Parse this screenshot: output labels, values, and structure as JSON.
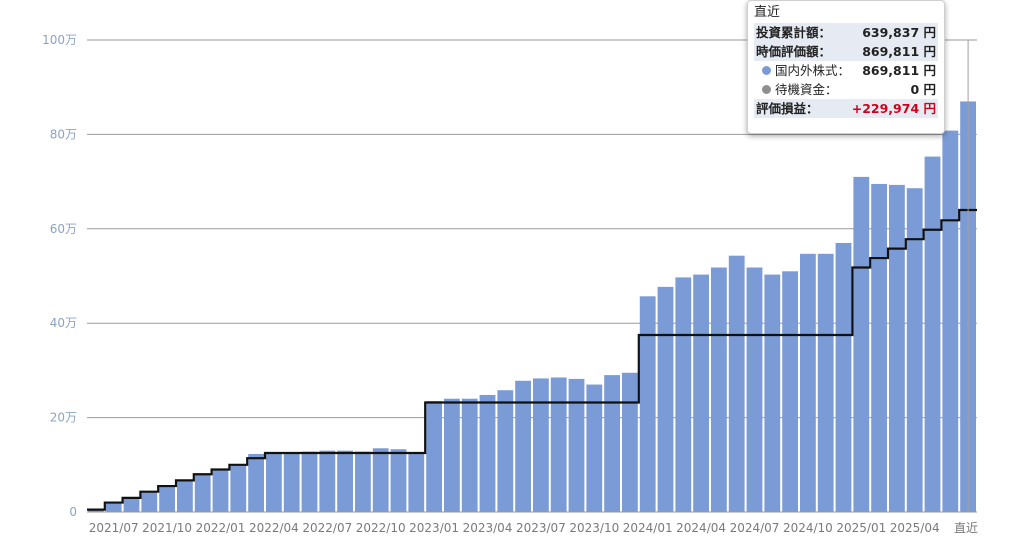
{
  "chart_data": {
    "type": "bar",
    "ylim": [
      0,
      1000000
    ],
    "y_ticks": [
      {
        "value": 0,
        "label": "0"
      },
      {
        "value": 200000,
        "label": "20万"
      },
      {
        "value": 400000,
        "label": "40万"
      },
      {
        "value": 600000,
        "label": "60万"
      },
      {
        "value": 800000,
        "label": "80万"
      },
      {
        "value": 1000000,
        "label": "100万"
      }
    ],
    "x_tick_labels": [
      {
        "index": 1,
        "label": "2021/07"
      },
      {
        "index": 4,
        "label": "2021/10"
      },
      {
        "index": 7,
        "label": "2022/01"
      },
      {
        "index": 10,
        "label": "2022/04"
      },
      {
        "index": 13,
        "label": "2022/07"
      },
      {
        "index": 16,
        "label": "2022/10"
      },
      {
        "index": 19,
        "label": "2023/01"
      },
      {
        "index": 22,
        "label": "2023/04"
      },
      {
        "index": 25,
        "label": "2023/07"
      },
      {
        "index": 28,
        "label": "2023/10"
      },
      {
        "index": 31,
        "label": "2024/01"
      },
      {
        "index": 34,
        "label": "2024/04"
      },
      {
        "index": 37,
        "label": "2024/07"
      },
      {
        "index": 40,
        "label": "2024/10"
      },
      {
        "index": 43,
        "label": "2025/01"
      },
      {
        "index": 46,
        "label": "2025/04"
      },
      {
        "index": 49,
        "label": "直近"
      }
    ],
    "categories": [
      "2021/06",
      "2021/07",
      "2021/08",
      "2021/09",
      "2021/10",
      "2021/11",
      "2021/12",
      "2022/01",
      "2022/02",
      "2022/03",
      "2022/04",
      "2022/05",
      "2022/06",
      "2022/07",
      "2022/08",
      "2022/09",
      "2022/10",
      "2022/11",
      "2022/12",
      "2023/01",
      "2023/02",
      "2023/03",
      "2023/04",
      "2023/05",
      "2023/06",
      "2023/07",
      "2023/08",
      "2023/09",
      "2023/10",
      "2023/11",
      "2023/12",
      "2024/01",
      "2024/02",
      "2024/03",
      "2024/04",
      "2024/05",
      "2024/06",
      "2024/07",
      "2024/08",
      "2024/09",
      "2024/10",
      "2024/11",
      "2024/12",
      "2025/01",
      "2025/02",
      "2025/03",
      "2025/04",
      "2025/05",
      "2025/06",
      "直近"
    ],
    "series": [
      {
        "type": "bar",
        "color": "#7b9bd6",
        "values": [
          5000,
          20000,
          30000,
          43000,
          55000,
          67000,
          80000,
          90000,
          100000,
          123000,
          125000,
          125000,
          128000,
          130000,
          130000,
          128000,
          135000,
          133000,
          126000,
          235000,
          240000,
          240000,
          248000,
          258000,
          278000,
          283000,
          285000,
          282000,
          270000,
          290000,
          295000,
          457000,
          477000,
          497000,
          503000,
          518000,
          543000,
          518000,
          503000,
          510000,
          547000,
          547000,
          570000,
          710000,
          695000,
          693000,
          686000,
          753000,
          808000,
          869811
        ]
      },
      {
        "type": "step-line",
        "color": "#111111",
        "values": [
          5000,
          20000,
          30000,
          43000,
          55000,
          67000,
          80000,
          90000,
          100000,
          114000,
          125000,
          125000,
          125000,
          125000,
          125000,
          125000,
          125000,
          125000,
          125000,
          232000,
          232000,
          232000,
          232000,
          232000,
          232000,
          232000,
          232000,
          232000,
          232000,
          232000,
          232000,
          375000,
          375000,
          375000,
          375000,
          375000,
          375000,
          375000,
          375000,
          375000,
          375000,
          375000,
          375000,
          518000,
          538000,
          558000,
          578000,
          598000,
          618000,
          639837
        ]
      }
    ]
  },
  "tooltip": {
    "title": "直近",
    "rows": [
      {
        "label": "投資累計額：",
        "value": "639,837 円"
      },
      {
        "label": "時価評価額：",
        "value": "869,811 円"
      },
      {
        "label": "国内外株式：",
        "value": "869,811 円",
        "dot_color": "#7b9bd6"
      },
      {
        "label": "待機資金：",
        "value": "0 円",
        "dot_color": "#8f8f8f"
      },
      {
        "label": "評価損益：",
        "value": "+229,974 円"
      }
    ]
  }
}
